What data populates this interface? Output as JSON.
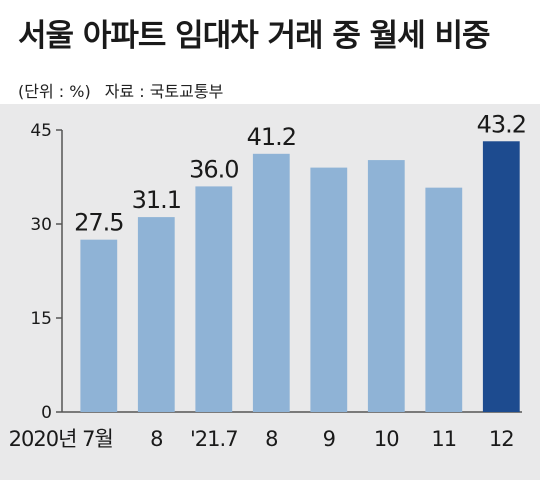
{
  "title": "서울 아파트 임대차 거래 중 월세 비중",
  "unit": "(단위 : %)",
  "source": "자료 : 국토교통부",
  "colors": {
    "bar": "#8fb3d6",
    "bar_highlight": "#1d4b8f",
    "background": "#e9e9ea",
    "text": "#1a1a1a"
  },
  "chart_data": {
    "type": "bar",
    "categories": [
      "2020년 7월",
      "8",
      "'21.7",
      "8",
      "9",
      "10",
      "11",
      "12"
    ],
    "values": [
      27.5,
      31.1,
      36.0,
      41.2,
      39.0,
      40.2,
      35.8,
      43.2
    ],
    "data_labels": [
      "27.5",
      "31.1",
      "36.0",
      "41.2",
      "",
      "",
      "",
      "43.2"
    ],
    "highlight_index": 7,
    "yticks": [
      "0",
      "15",
      "30",
      "45"
    ],
    "ylim": [
      0,
      45
    ],
    "grid": false,
    "legend": "none"
  }
}
